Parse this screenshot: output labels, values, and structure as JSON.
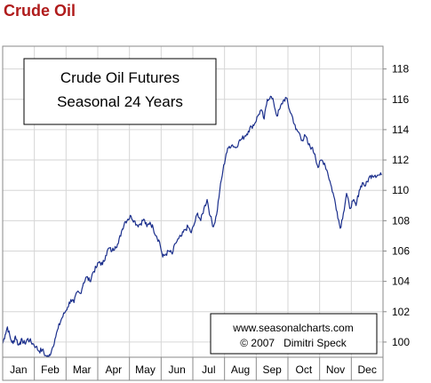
{
  "page": {
    "title": "Crude Oil"
  },
  "chart_data": {
    "type": "line",
    "title_box": [
      "Crude Oil Futures",
      "Seasonal 24 Years"
    ],
    "credits": [
      "www.seasonalcharts.com",
      "© 2007   Dimitri Speck"
    ],
    "xlabel": "",
    "ylabel": "",
    "months": [
      "Jan",
      "Feb",
      "Mar",
      "Apr",
      "May",
      "Jun",
      "Jul",
      "Aug",
      "Sep",
      "Oct",
      "Nov",
      "Dec"
    ],
    "y_ticks": [
      100,
      102,
      104,
      106,
      108,
      110,
      112,
      114,
      116,
      118
    ],
    "ylim": [
      99,
      119.5
    ],
    "xlim": [
      0,
      12
    ],
    "grid": true,
    "colors": {
      "line": "#1b2f8c",
      "grid": "#d6d6d6",
      "frame": "#8a8a8a",
      "title": "#b01c1c"
    },
    "series": [
      {
        "x": [
          0.0,
          0.08,
          0.15,
          0.25,
          0.33,
          0.4,
          0.5,
          0.55,
          0.62,
          0.7,
          0.78,
          0.85,
          0.95,
          1.05,
          1.15,
          1.25,
          1.35,
          1.45,
          1.55,
          1.65,
          1.75,
          1.85,
          1.95,
          2.05,
          2.15,
          2.25,
          2.35,
          2.45,
          2.55,
          2.65,
          2.75,
          2.85,
          2.95,
          3.05,
          3.15,
          3.25,
          3.35,
          3.45,
          3.55,
          3.65,
          3.75,
          3.85,
          3.95,
          4.05,
          4.15,
          4.25,
          4.35,
          4.45,
          4.55,
          4.65,
          4.75,
          4.85,
          4.95,
          5.05,
          5.15,
          5.25,
          5.35,
          5.45,
          5.55,
          5.65,
          5.75,
          5.85,
          5.95,
          6.05,
          6.15,
          6.25,
          6.35,
          6.45,
          6.55,
          6.65,
          6.75,
          6.85,
          6.95,
          7.05,
          7.15,
          7.25,
          7.35,
          7.45,
          7.55,
          7.65,
          7.75,
          7.85,
          7.95,
          8.05,
          8.15,
          8.25,
          8.35,
          8.45,
          8.55,
          8.65,
          8.75,
          8.85,
          8.95,
          9.05,
          9.15,
          9.25,
          9.35,
          9.45,
          9.55,
          9.65,
          9.75,
          9.85,
          9.95,
          10.05,
          10.15,
          10.25,
          10.35,
          10.45,
          10.55,
          10.65,
          10.75,
          10.85,
          10.95,
          11.05,
          11.15,
          11.25,
          11.35,
          11.45,
          11.55,
          11.65,
          11.75,
          11.85,
          11.95
        ],
        "y": [
          99.9,
          100.5,
          101.0,
          100.2,
          99.9,
          100.4,
          99.8,
          100.0,
          100.1,
          99.9,
          100.2,
          100.1,
          99.9,
          99.7,
          99.4,
          99.5,
          99.1,
          99.0,
          99.5,
          100.2,
          100.9,
          101.5,
          101.9,
          102.3,
          102.8,
          102.6,
          103.3,
          103.2,
          103.9,
          104.3,
          104.0,
          104.6,
          104.9,
          105.3,
          105.1,
          105.7,
          106.2,
          106.0,
          106.3,
          106.5,
          107.3,
          107.9,
          108.1,
          108.3,
          108.0,
          107.7,
          107.8,
          108.1,
          107.6,
          107.9,
          107.5,
          107.0,
          106.6,
          105.6,
          105.8,
          106.0,
          105.8,
          106.5,
          106.8,
          107.0,
          107.4,
          107.6,
          107.2,
          107.8,
          108.5,
          108.0,
          108.8,
          109.4,
          108.3,
          107.6,
          108.4,
          110.0,
          111.3,
          112.4,
          112.9,
          113.0,
          112.8,
          113.2,
          113.4,
          113.6,
          113.9,
          114.2,
          114.4,
          114.9,
          115.3,
          114.7,
          116.0,
          116.2,
          115.8,
          114.9,
          115.4,
          115.9,
          116.1,
          115.3,
          114.8,
          114.0,
          113.8,
          113.3,
          113.6,
          113.0,
          112.8,
          112.4,
          111.5,
          112.0,
          111.8,
          111.2,
          110.4,
          109.6,
          108.6,
          107.5,
          108.5,
          109.8,
          108.8,
          109.3,
          109.0,
          110.0,
          110.5,
          110.3,
          110.8,
          111.0,
          111.0,
          111.0,
          111.0
        ]
      }
    ]
  }
}
